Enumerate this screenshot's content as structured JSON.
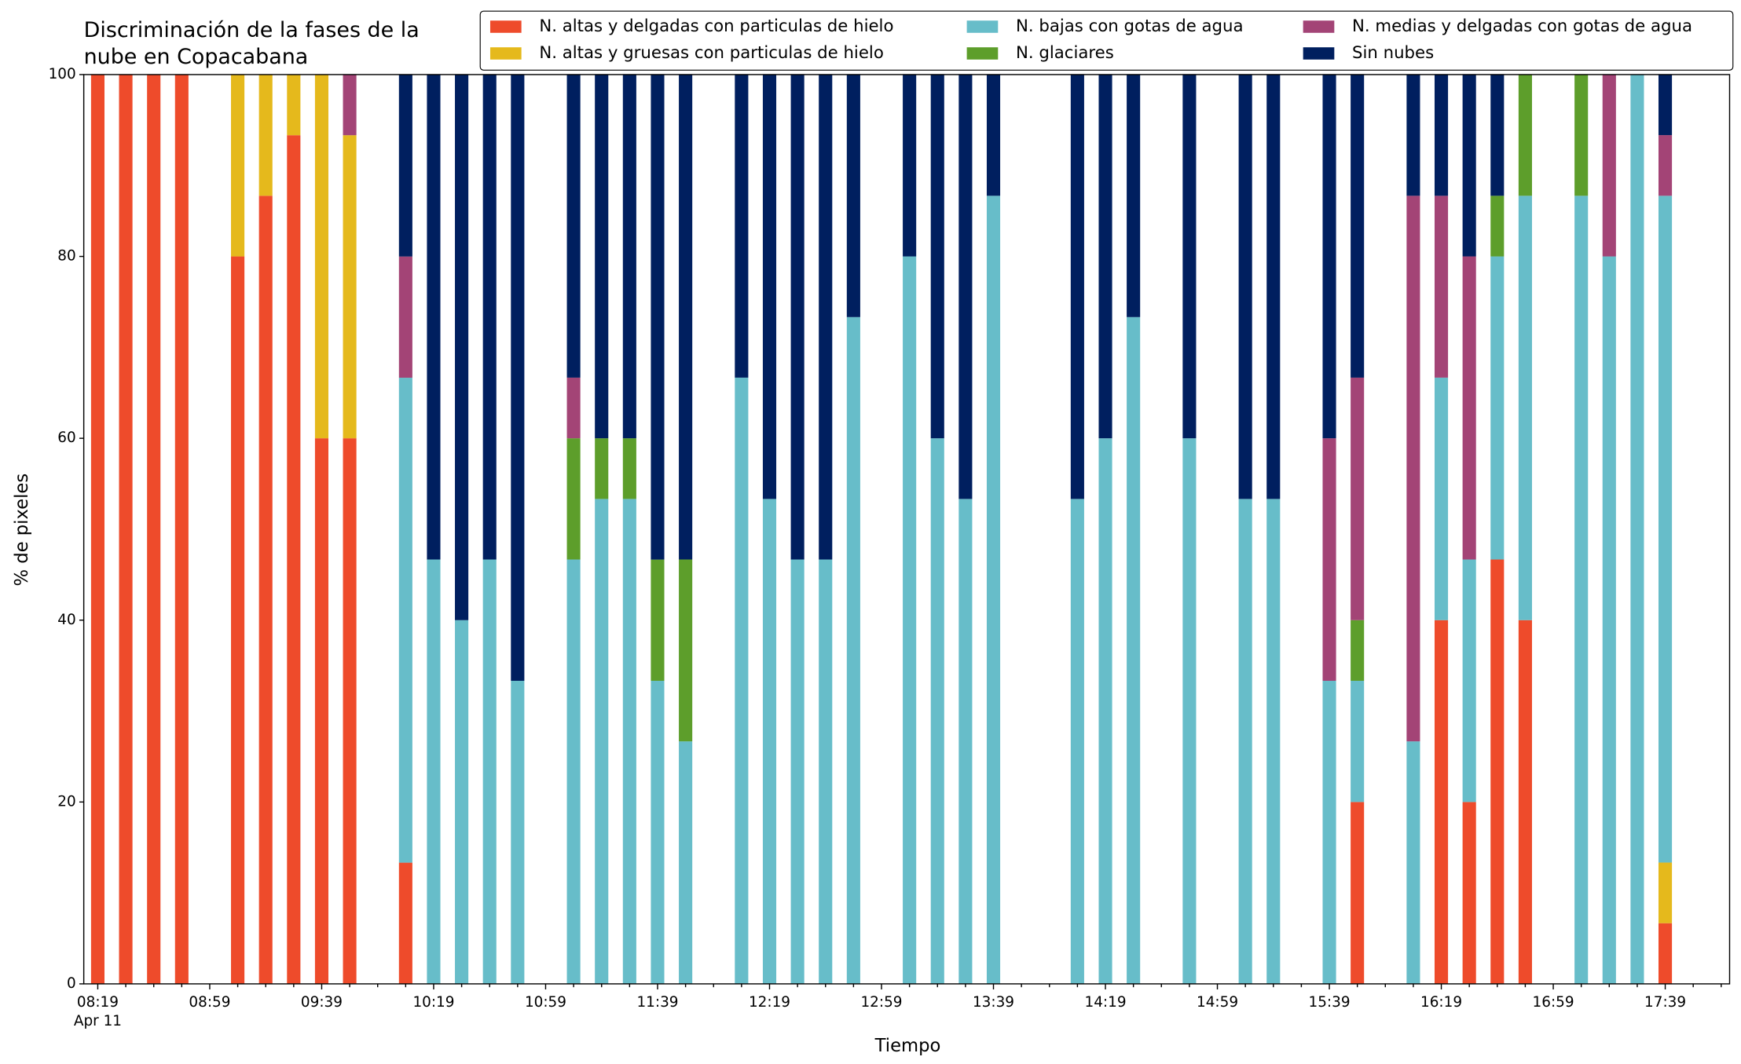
{
  "chart_data": {
    "type": "bar",
    "stacked": true,
    "title": [
      "Discriminación de la fases de la",
      "nube en Copacabana"
    ],
    "xlabel": "Tiempo",
    "ylabel": "% de pixeles",
    "date_label": "Apr 11",
    "x": [
      "08:19",
      "08:29",
      "08:39",
      "08:49",
      "09:09",
      "09:19",
      "09:29",
      "09:39",
      "09:49",
      "10:09",
      "10:19",
      "10:29",
      "10:39",
      "10:49",
      "11:09",
      "11:19",
      "11:29",
      "11:39",
      "11:49",
      "12:09",
      "12:19",
      "12:29",
      "12:39",
      "12:49",
      "13:09",
      "13:19",
      "13:29",
      "13:39",
      "14:09",
      "14:19",
      "14:29",
      "14:49",
      "15:09",
      "15:19",
      "15:39",
      "15:49",
      "16:09",
      "16:19",
      "16:29",
      "16:39",
      "16:49",
      "17:09",
      "17:19",
      "17:29",
      "17:39"
    ],
    "series": [
      {
        "name": "N. altas y delgadas con particulas de hielo",
        "color": "#ee4b2b",
        "values": [
          100,
          100,
          100,
          100,
          80,
          86.67,
          93.33,
          60,
          60,
          13.33,
          0,
          0,
          0,
          0,
          0,
          0,
          0,
          0,
          0,
          0,
          0,
          0,
          0,
          0,
          0,
          0,
          0,
          0,
          0,
          0,
          0,
          0,
          0,
          0,
          0,
          20,
          0,
          40,
          20,
          46.67,
          40,
          0,
          0,
          0,
          6.67
        ]
      },
      {
        "name": "N. altas y gruesas con particulas de hielo",
        "color": "#e5b91c",
        "values": [
          0,
          0,
          0,
          0,
          20,
          13.33,
          6.67,
          40,
          33.33,
          0,
          0,
          0,
          0,
          0,
          0,
          0,
          0,
          0,
          0,
          0,
          0,
          0,
          0,
          0,
          0,
          0,
          0,
          0,
          0,
          0,
          0,
          0,
          0,
          0,
          0,
          0,
          0,
          0,
          0,
          0,
          0,
          0,
          0,
          0,
          6.67
        ]
      },
      {
        "name": "N. bajas con gotas de agua",
        "color": "#67bdc9",
        "values": [
          0,
          0,
          0,
          0,
          0,
          0,
          0,
          0,
          0,
          53.33,
          46.67,
          40,
          46.67,
          33.33,
          46.67,
          53.33,
          53.33,
          33.33,
          26.67,
          66.67,
          53.33,
          46.67,
          46.67,
          73.33,
          80,
          60,
          53.33,
          86.67,
          53.33,
          60,
          73.33,
          60,
          53.33,
          53.33,
          33.33,
          13.33,
          26.67,
          26.67,
          26.67,
          33.33,
          46.67,
          86.67,
          80,
          100,
          73.33
        ]
      },
      {
        "name": "N. glaciares",
        "color": "#5d9e2b",
        "values": [
          0,
          0,
          0,
          0,
          0,
          0,
          0,
          0,
          0,
          0,
          0,
          0,
          0,
          0,
          13.33,
          6.67,
          6.67,
          13.33,
          20,
          0,
          0,
          0,
          0,
          0,
          0,
          0,
          0,
          0,
          0,
          0,
          0,
          0,
          0,
          0,
          0,
          6.67,
          0,
          0,
          0,
          6.67,
          13.33,
          13.33,
          0,
          0,
          0
        ]
      },
      {
        "name": "N. medias y delgadas con gotas de agua",
        "color": "#a34476",
        "values": [
          0,
          0,
          0,
          0,
          0,
          0,
          0,
          0,
          6.67,
          13.33,
          0,
          0,
          0,
          0,
          6.67,
          0,
          0,
          0,
          0,
          0,
          0,
          0,
          0,
          0,
          0,
          0,
          0,
          0,
          0,
          0,
          0,
          0,
          0,
          0,
          26.67,
          26.67,
          60,
          20,
          33.33,
          0,
          0,
          0,
          20,
          0,
          6.67
        ]
      },
      {
        "name": "Sin nubes",
        "color": "#001f5f",
        "values": [
          0,
          0,
          0,
          0,
          0,
          0,
          0,
          0,
          0,
          20,
          53.33,
          60,
          53.33,
          66.67,
          33.33,
          40,
          40,
          53.33,
          53.33,
          33.33,
          46.67,
          53.33,
          53.33,
          26.67,
          20,
          40,
          46.67,
          13.33,
          46.67,
          40,
          26.67,
          40,
          46.67,
          46.67,
          40,
          33.33,
          13.33,
          13.33,
          20,
          13.33,
          0,
          0,
          0,
          0,
          6.67
        ]
      }
    ],
    "xlim": [
      "08:14",
      "18:02"
    ],
    "xticks": [
      "08:19",
      "08:59",
      "09:39",
      "10:19",
      "10:59",
      "11:39",
      "12:19",
      "12:59",
      "13:39",
      "14:19",
      "14:59",
      "15:39",
      "16:19",
      "16:59",
      "17:39"
    ],
    "xticks_minor": [
      "08:29",
      "08:39",
      "08:49",
      "09:09",
      "09:19",
      "09:29",
      "09:49",
      "09:59",
      "10:09",
      "10:29",
      "10:39",
      "10:49",
      "11:09",
      "11:19",
      "11:29",
      "11:49",
      "11:59",
      "12:09",
      "12:29",
      "12:39",
      "12:49",
      "13:09",
      "13:19",
      "13:29",
      "13:49",
      "13:59",
      "14:09",
      "14:29",
      "14:39",
      "14:49",
      "15:09",
      "15:19",
      "15:29",
      "15:49",
      "15:59",
      "16:09",
      "16:29",
      "16:39",
      "16:49",
      "17:09",
      "17:19",
      "17:29",
      "17:49",
      "17:59"
    ],
    "ylim": [
      0,
      100
    ],
    "yticks": [
      0,
      20,
      40,
      60,
      80,
      100
    ],
    "grid": false,
    "legend": "upper right"
  }
}
